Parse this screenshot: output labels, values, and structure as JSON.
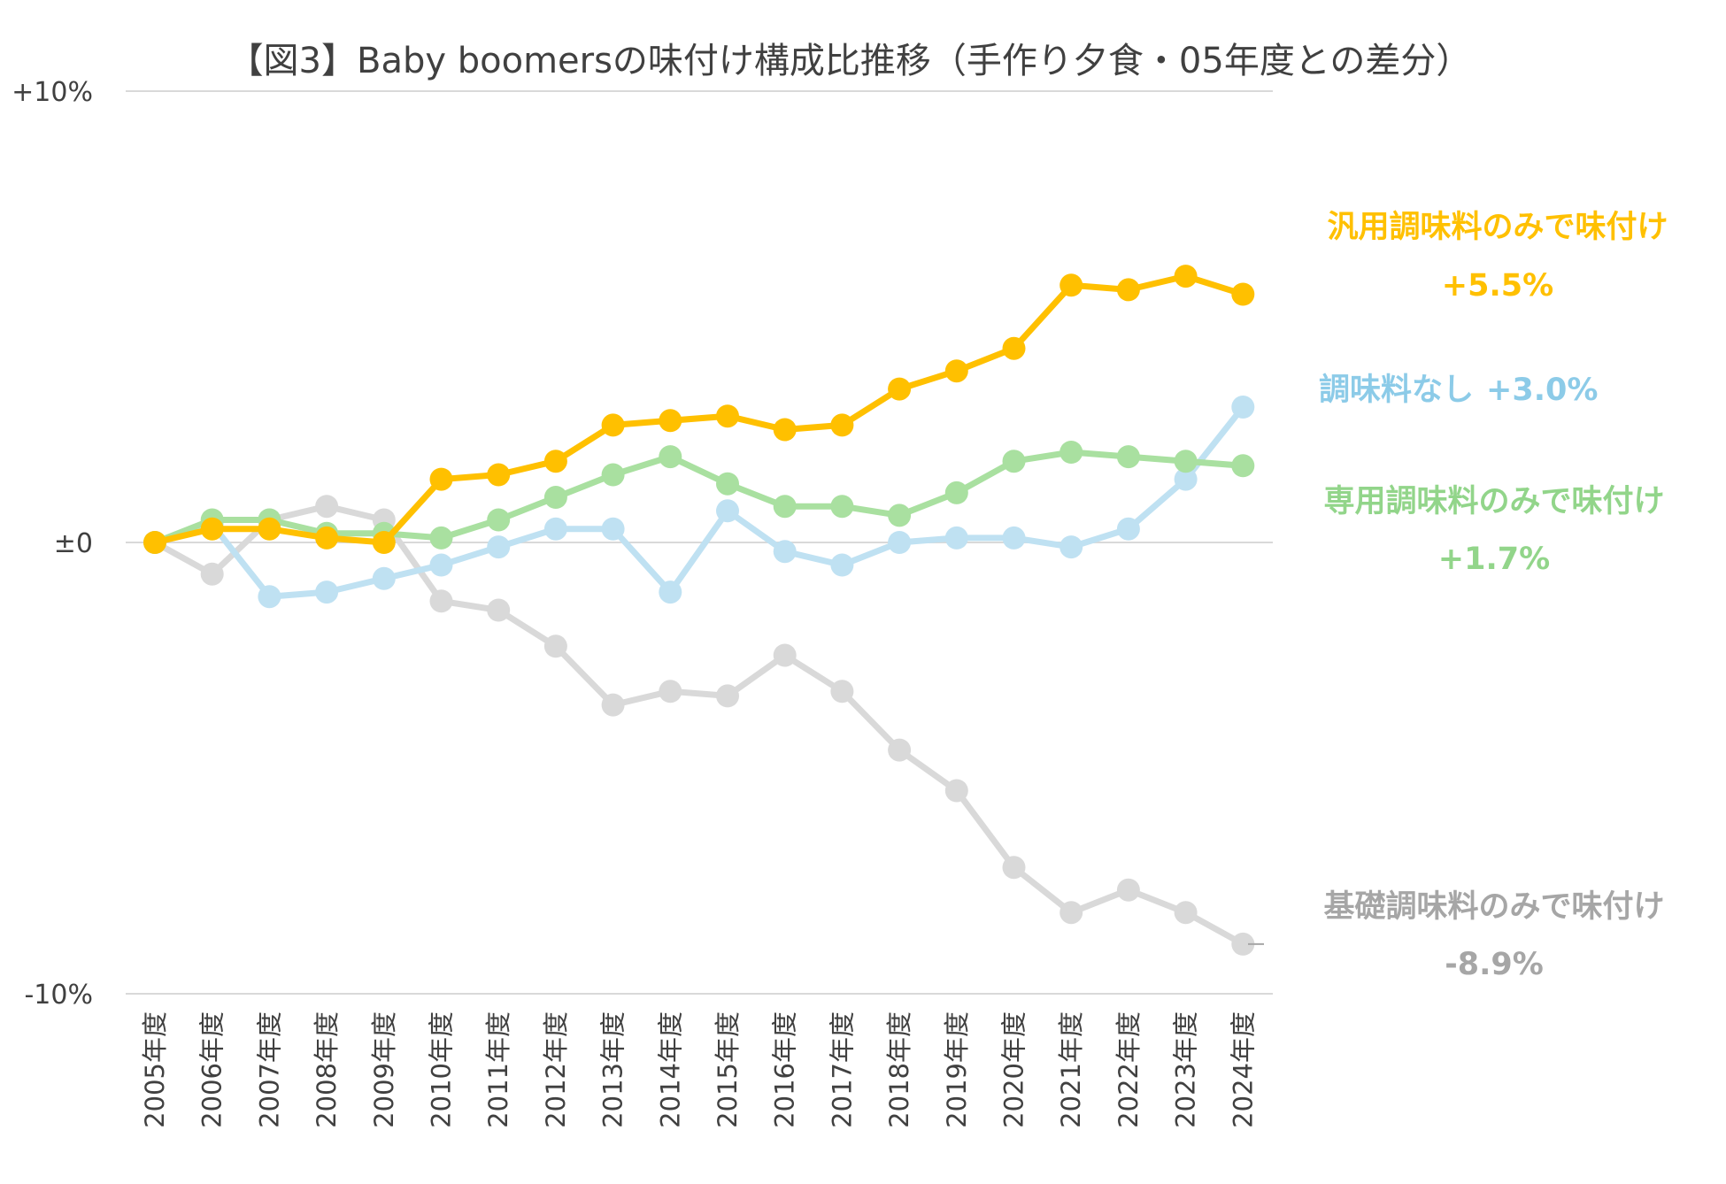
{
  "chart_data": {
    "type": "line",
    "title": "【図3】Baby boomersの味付け構成比推移（手作り夕食・05年度との差分）",
    "xlabel": "",
    "ylabel": "",
    "ylim": [
      -10,
      10
    ],
    "yticks": [
      {
        "value": 10,
        "label": "+10%"
      },
      {
        "value": 0,
        "label": "±0"
      },
      {
        "value": -10,
        "label": "-10%"
      }
    ],
    "grid": true,
    "legend": "none",
    "categories": [
      "2005年度",
      "2006年度",
      "2007年度",
      "2008年度",
      "2009年度",
      "2010年度",
      "2011年度",
      "2012年度",
      "2013年度",
      "2014年度",
      "2015年度",
      "2016年度",
      "2017年度",
      "2018年度",
      "2019年度",
      "2020年度",
      "2021年度",
      "2022年度",
      "2023年度",
      "2024年度"
    ],
    "series": [
      {
        "name": "基礎調味料のみで味付け",
        "end_label": "-8.9%",
        "color": "#d9d9d9",
        "label_color": "#a6a6a6",
        "values": [
          0,
          -0.7,
          0.5,
          0.8,
          0.5,
          -1.3,
          -1.5,
          -2.3,
          -3.6,
          -3.3,
          -3.4,
          -2.5,
          -3.3,
          -4.6,
          -5.5,
          -7.2,
          -8.2,
          -7.7,
          -8.2,
          -8.9
        ]
      },
      {
        "name": "調味料なし",
        "end_label": "+3.0%",
        "color": "#bfe1f2",
        "label_color": "#8ccbe8",
        "values": [
          0,
          0.4,
          -1.2,
          -1.1,
          -0.8,
          -0.5,
          -0.1,
          0.3,
          0.3,
          -1.1,
          0.7,
          -0.2,
          -0.5,
          0.0,
          0.1,
          0.1,
          -0.1,
          0.3,
          1.4,
          3.0
        ]
      },
      {
        "name": "専用調味料のみで味付け",
        "end_label": "+1.7%",
        "color": "#a9e0a0",
        "label_color": "#92d58a",
        "values": [
          0,
          0.5,
          0.5,
          0.2,
          0.2,
          0.1,
          0.5,
          1.0,
          1.5,
          1.9,
          1.3,
          0.8,
          0.8,
          0.6,
          1.1,
          1.8,
          2.0,
          1.9,
          1.8,
          1.7
        ]
      },
      {
        "name": "汎用調味料のみで味付け",
        "end_label": "+5.5%",
        "color": "#ffc000",
        "label_color": "#ffc000",
        "values": [
          0,
          0.3,
          0.3,
          0.1,
          0.0,
          1.4,
          1.5,
          1.8,
          2.6,
          2.7,
          2.8,
          2.5,
          2.6,
          3.4,
          3.8,
          4.3,
          5.7,
          5.6,
          5.9,
          5.5
        ]
      }
    ]
  }
}
